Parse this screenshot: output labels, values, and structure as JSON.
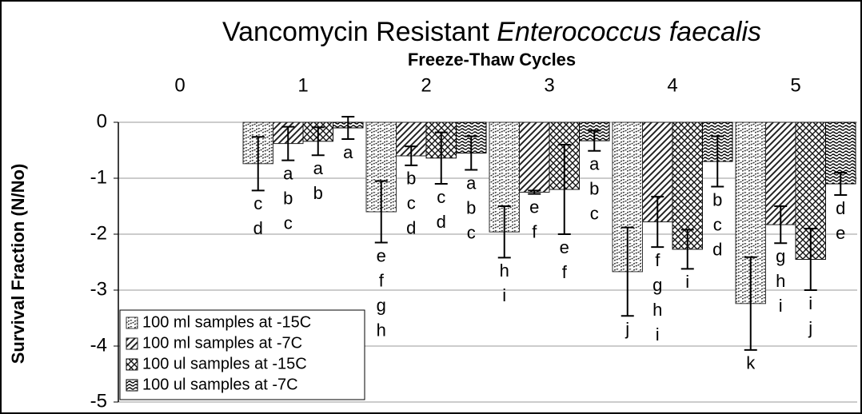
{
  "chart_data": {
    "type": "bar",
    "title": "Vancomycin Resistant",
    "title_italic": "Enterococcus faecalis",
    "x_label": "Freeze-Thaw Cycles",
    "y_label": "Survival Fraction (N/No)",
    "categories": [
      "0",
      "1",
      "2",
      "3",
      "4",
      "5"
    ],
    "ylim": [
      -5,
      0
    ],
    "yticks": [
      0,
      -1,
      -2,
      -3,
      -4,
      -5
    ],
    "grid": true,
    "legend": "lower left",
    "series": [
      {
        "name": "100 ml samples at -15C",
        "color": "#333333",
        "values": [
          null,
          -0.74,
          -1.6,
          -1.96,
          -2.67,
          -3.24
        ],
        "errors": [
          null,
          0.48,
          0.55,
          0.46,
          0.79,
          0.83
        ],
        "letters": [
          null,
          [
            "c",
            "d"
          ],
          [
            "e",
            "f",
            "g",
            "h"
          ],
          [
            "h",
            "i"
          ],
          [
            "j"
          ],
          [
            "k"
          ]
        ]
      },
      {
        "name": "100 ml samples at -7C",
        "color": "#222222",
        "values": [
          null,
          -0.38,
          -0.6,
          -1.25,
          -1.78,
          -1.83
        ],
        "errors": [
          null,
          0.3,
          0.17,
          0.03,
          0.45,
          0.33
        ],
        "letters": [
          null,
          [
            "a",
            "b",
            "c"
          ],
          [
            "b",
            "c",
            "d"
          ],
          [
            "e",
            "f"
          ],
          [
            "f",
            "g",
            "h",
            "i"
          ],
          [
            "g",
            "h",
            "i"
          ]
        ]
      },
      {
        "name": "100 ul samples at -15C",
        "color": "#111111",
        "values": [
          null,
          -0.34,
          -0.64,
          -1.2,
          -2.27,
          -2.45
        ],
        "errors": [
          null,
          0.25,
          0.46,
          0.8,
          0.35,
          0.55
        ],
        "letters": [
          null,
          [
            "a",
            "b"
          ],
          [
            "c",
            "d"
          ],
          [
            "e",
            "f"
          ],
          [
            "i"
          ],
          [
            "i",
            "j"
          ]
        ]
      },
      {
        "name": "100 ul samples at -7C",
        "color": "#000000",
        "values": [
          null,
          -0.1,
          -0.55,
          -0.33,
          -0.7,
          -1.1
        ],
        "errors": [
          null,
          0.2,
          0.3,
          0.18,
          0.45,
          0.2
        ],
        "letters": [
          null,
          [
            "a"
          ],
          [
            "a",
            "b",
            "c"
          ],
          [
            "a",
            "b",
            "c"
          ],
          [
            "b",
            "c",
            "d"
          ],
          [
            "d",
            "e"
          ]
        ]
      }
    ]
  }
}
